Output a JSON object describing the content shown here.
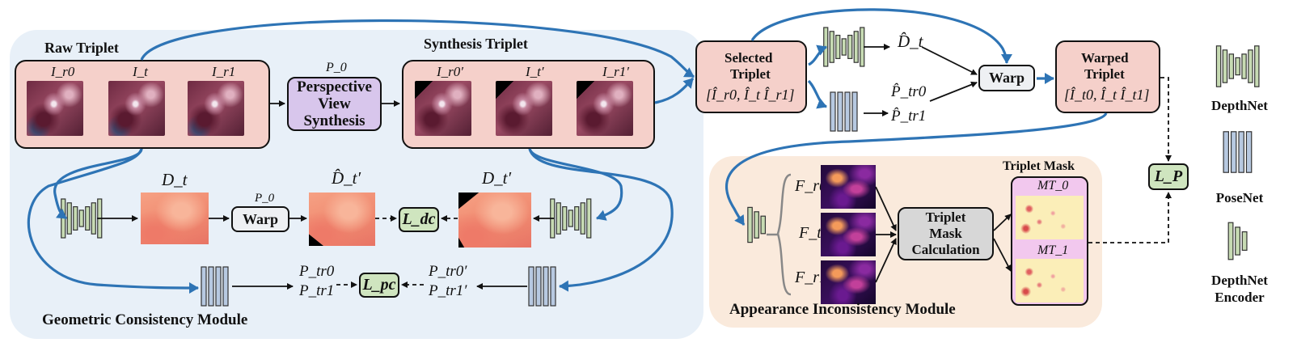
{
  "geometric_module": {
    "title": "Geometric Consistency Module",
    "raw_triplet_label": "Raw Triplet",
    "raw_frames": [
      "I_r0",
      "I_t",
      "I_r1"
    ],
    "synthesis_triplet_label": "Synthesis Triplet",
    "synth_frames": [
      "I_r0′",
      "I_t′",
      "I_r1′"
    ],
    "pvs_param": "P_0",
    "pvs_label": [
      "Perspective",
      "View",
      "Synthesis"
    ],
    "depth_left_label": "D_t",
    "warp_param": "P_0",
    "warp_label": "Warp",
    "depth_warped_label": "D̂_t′",
    "loss_dc": "L_dc",
    "depth_right_label": "D_t′",
    "pose_left": [
      "P_tr0",
      "P_tr1"
    ],
    "loss_pc": "L_pc",
    "pose_right": [
      "P_tr0′",
      "P_tr1′"
    ]
  },
  "selection": {
    "selected_title": [
      "Selected",
      "Triplet"
    ],
    "selected_formula": "[Î_r0, Î_t Î_r1]",
    "depth_hat": "D̂_t",
    "pose_hat": [
      "P̂_tr0",
      "P̂_tr1"
    ],
    "warp_label": "Warp",
    "warped_title": [
      "Warped",
      "Triplet"
    ],
    "warped_formula": "[Î_t0, Î_t Î_t1]",
    "loss_p": "L_P"
  },
  "appearance_module": {
    "title": "Appearance Inconsistency Module",
    "features": [
      "F_r0",
      "F_t",
      "F_r1"
    ],
    "tmc_label": [
      "Triplet",
      "Mask",
      "Calculation"
    ],
    "mask_title": "Triplet Mask",
    "masks": [
      "MT_0",
      "MT_1"
    ]
  },
  "legend": [
    {
      "label": "DepthNet"
    },
    {
      "label": "PoseNet"
    },
    {
      "label": "DepthNet Encoder"
    }
  ],
  "colors": {
    "arrow_blue": "#2e74b5",
    "geo_panel": "#e8f0f8",
    "app_panel": "#faeadc",
    "triplet": "#f5d0ca",
    "pvs": "#d8c6ec",
    "loss": "#cfe5bf",
    "mask": "#f2c8ee",
    "depthnet": "#c7dbb3",
    "posenet": "#b7c9e1"
  }
}
